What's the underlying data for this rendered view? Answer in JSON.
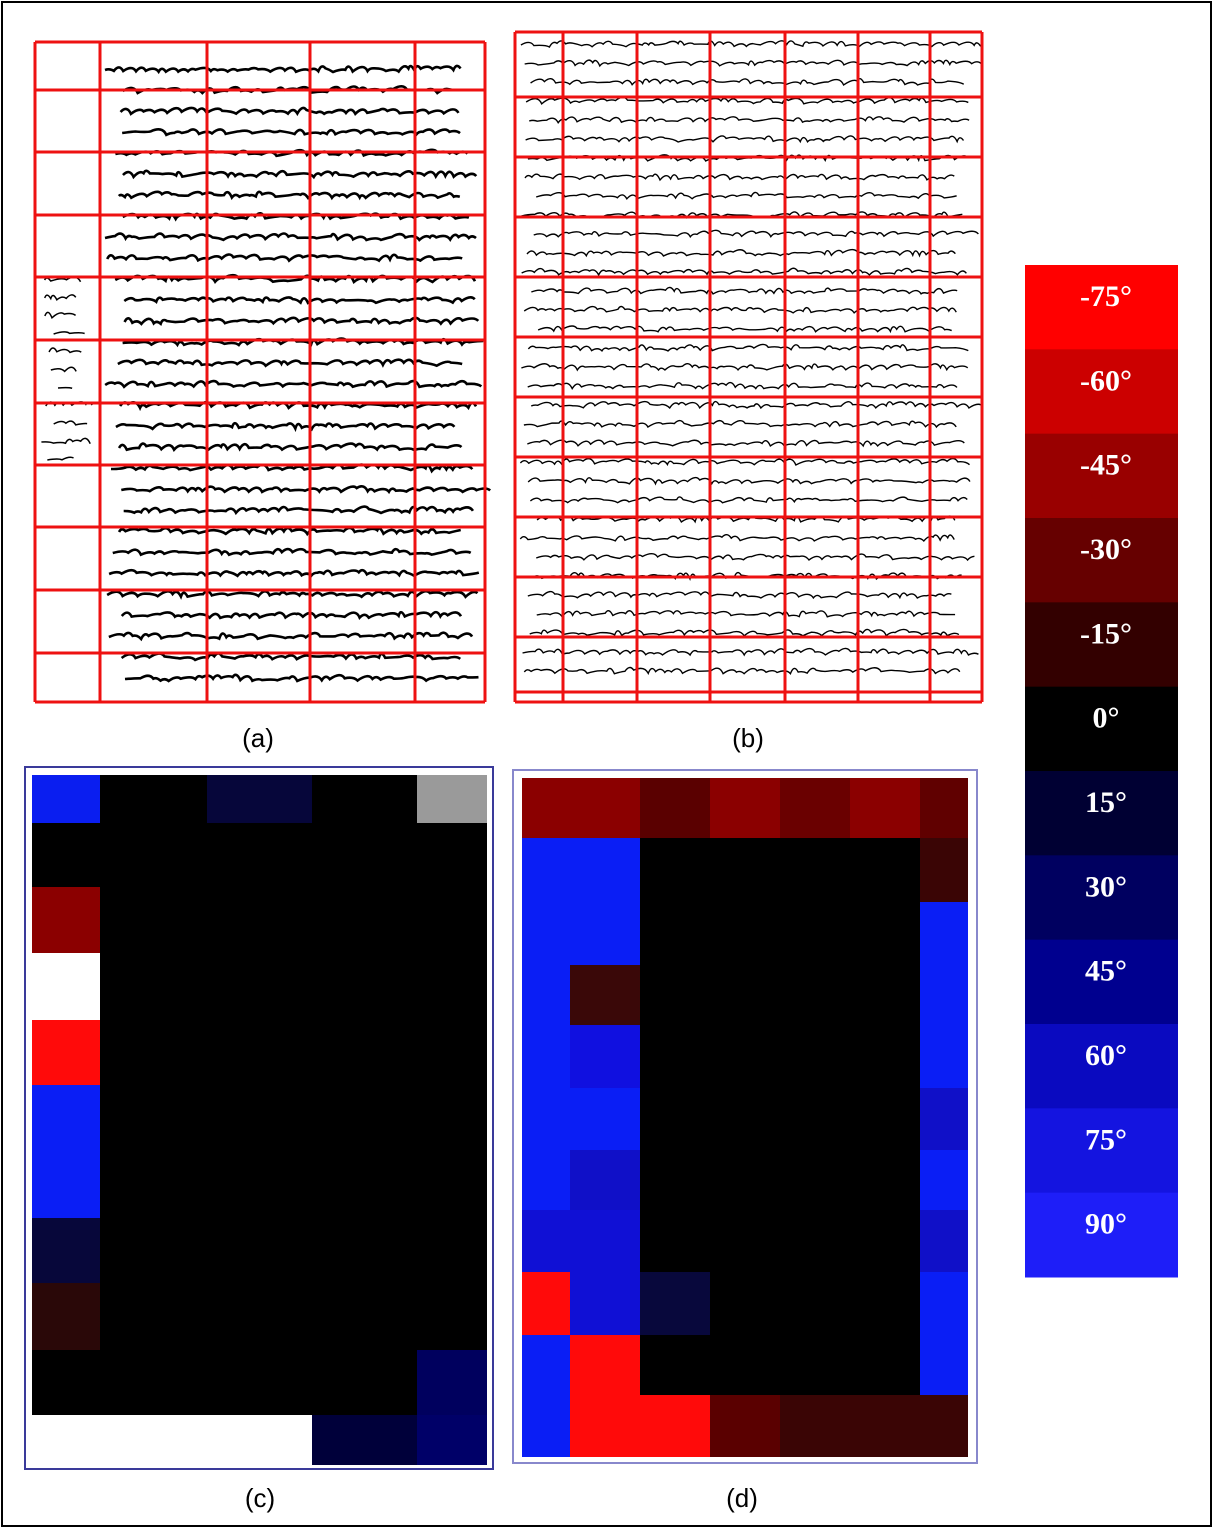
{
  "panels": [
    {
      "caption": "(a)"
    },
    {
      "caption": "(b)"
    },
    {
      "caption": "(c)",
      "cell_colors": [
        [
          "#0a1ef0",
          "#000000",
          "#06063a",
          "#000000",
          "#9a9a9a"
        ],
        [
          "#000000",
          "#000000",
          "#000000",
          "#000000",
          "#000000"
        ],
        [
          "#8b0000",
          "#000000",
          "#000000",
          "#000000",
          "#000000"
        ],
        [
          "#ffffff",
          "#000000",
          "#000000",
          "#000000",
          "#000000"
        ],
        [
          "#ff0a0a",
          "#000000",
          "#000000",
          "#000000",
          "#000000"
        ],
        [
          "#0a1ef5",
          "#000000",
          "#000000",
          "#000000",
          "#000000"
        ],
        [
          "#0a1ef5",
          "#000000",
          "#000000",
          "#000000",
          "#000000"
        ],
        [
          "#07073a",
          "#000000",
          "#000000",
          "#000000",
          "#000000"
        ],
        [
          "#2a0808",
          "#000000",
          "#000000",
          "#000000",
          "#000000"
        ],
        [
          "#000000",
          "#000000",
          "#000000",
          "#000000",
          "#00005e"
        ],
        [
          "#ffffff",
          "#ffffff",
          "#ffffff",
          "#00003a",
          "#000068"
        ]
      ]
    },
    {
      "caption": "(d)",
      "cell_colors": [
        [
          "#8b0000",
          "#8b0000",
          "#5a0000",
          "#8b0000",
          "#6a0000",
          "#8b0000",
          "#600000"
        ],
        [
          "#0a1ef5",
          "#0a1ef5",
          "#000000",
          "#000000",
          "#000000",
          "#000000",
          "#3a0505"
        ],
        [
          "#0a1ef5",
          "#0a1ef5",
          "#000000",
          "#000000",
          "#000000",
          "#000000",
          "#0a1ef5"
        ],
        [
          "#0a1ef5",
          "#3a0808",
          "#000000",
          "#000000",
          "#000000",
          "#000000",
          "#0a1ef5"
        ],
        [
          "#0a1ef5",
          "#1010e0",
          "#000000",
          "#000000",
          "#000000",
          "#000000",
          "#0a1ef5"
        ],
        [
          "#0a1ef5",
          "#0a1ef5",
          "#000000",
          "#000000",
          "#000000",
          "#000000",
          "#1010c8"
        ],
        [
          "#0a1ef5",
          "#1010c8",
          "#000000",
          "#000000",
          "#000000",
          "#000000",
          "#0a1ef5"
        ],
        [
          "#1010d5",
          "#1010d5",
          "#000000",
          "#000000",
          "#000000",
          "#000000",
          "#1010c8"
        ],
        [
          "#ff0a0a",
          "#1010d5",
          "#08083c",
          "#000000",
          "#000000",
          "#000000",
          "#0a1ef5"
        ],
        [
          "#0a1ef5",
          "#ff0a0a",
          "#000000",
          "#000000",
          "#000000",
          "#000000",
          "#0a1ef5"
        ],
        [
          "#0a1ef5",
          "#ff0a0a",
          "#ff0a0a",
          "#5a0000",
          "#3a0505",
          "#3a0505",
          "#3a0505"
        ]
      ]
    }
  ],
  "colorbar": {
    "labels": [
      "-75°",
      "-60°",
      "-45°",
      "-30°",
      "-15°",
      "0°",
      "15°",
      "30°",
      "45°",
      "60°",
      "75°",
      "90°"
    ],
    "colors": [
      "#ff0000",
      "#cc0000",
      "#990000",
      "#660000",
      "#330000",
      "#000000",
      "#000033",
      "#000060",
      "#00008f",
      "#0a0ac0",
      "#1414e0",
      "#1e1ef8"
    ]
  }
}
